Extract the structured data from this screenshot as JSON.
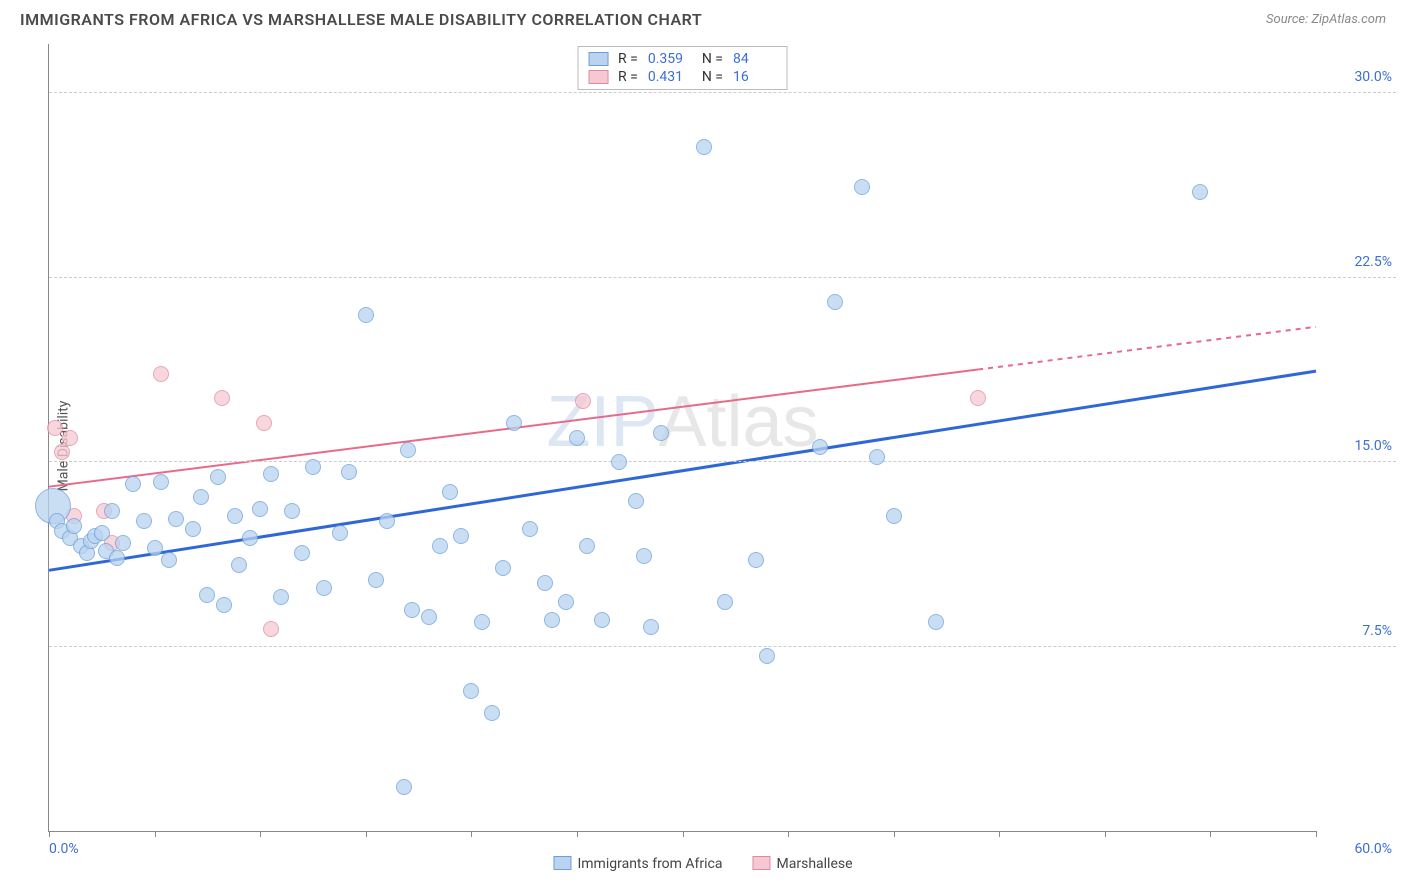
{
  "header": {
    "title": "IMMIGRANTS FROM AFRICA VS MARSHALLESE MALE DISABILITY CORRELATION CHART",
    "source_prefix": "Source: ",
    "source_name": "ZipAtlas.com"
  },
  "chart": {
    "type": "scatter",
    "ylabel": "Male Disability",
    "xlim": [
      0,
      60
    ],
    "ylim": [
      0,
      32
    ],
    "xtick_positions": [
      0,
      5,
      10,
      15,
      20,
      25,
      30,
      35,
      40,
      45,
      50,
      55,
      60
    ],
    "xtick_labels_shown": {
      "0": "0.0%",
      "60": "60.0%"
    },
    "ytick_grid": [
      7.5,
      15.0,
      22.5,
      30.0
    ],
    "ytick_labels": [
      "7.5%",
      "15.0%",
      "22.5%",
      "30.0%"
    ],
    "background_color": "#ffffff",
    "grid_color": "#cccccc",
    "axis_color": "#888888",
    "tick_label_color": "#3b6fd4",
    "marker_radius": 8,
    "marker_radius_big": 18,
    "series": {
      "africa": {
        "label": "Immigrants from Africa",
        "fill": "#b9d3f0",
        "stroke": "#6a9edb",
        "opacity": 0.75,
        "points": [
          [
            0.2,
            13.2,
            "big"
          ],
          [
            0.4,
            12.6
          ],
          [
            0.6,
            12.2
          ],
          [
            1.0,
            11.9
          ],
          [
            1.2,
            12.4
          ],
          [
            1.5,
            11.6
          ],
          [
            1.8,
            11.3
          ],
          [
            2.0,
            11.8
          ],
          [
            2.2,
            12.0
          ],
          [
            2.5,
            12.1
          ],
          [
            2.7,
            11.4
          ],
          [
            3.0,
            13.0
          ],
          [
            3.2,
            11.1
          ],
          [
            3.5,
            11.7
          ],
          [
            4.0,
            14.1
          ],
          [
            4.5,
            12.6
          ],
          [
            5.0,
            11.5
          ],
          [
            5.3,
            14.2
          ],
          [
            5.7,
            11.0
          ],
          [
            6.0,
            12.7
          ],
          [
            6.8,
            12.3
          ],
          [
            7.2,
            13.6
          ],
          [
            7.5,
            9.6
          ],
          [
            8.0,
            14.4
          ],
          [
            8.3,
            9.2
          ],
          [
            8.8,
            12.8
          ],
          [
            9.0,
            10.8
          ],
          [
            9.5,
            11.9
          ],
          [
            10.0,
            13.1
          ],
          [
            10.5,
            14.5
          ],
          [
            11.0,
            9.5
          ],
          [
            11.5,
            13.0
          ],
          [
            12.0,
            11.3
          ],
          [
            12.5,
            14.8
          ],
          [
            13.0,
            9.9
          ],
          [
            13.8,
            12.1
          ],
          [
            14.2,
            14.6
          ],
          [
            15.0,
            21.0
          ],
          [
            15.5,
            10.2
          ],
          [
            16.0,
            12.6
          ],
          [
            16.8,
            1.8
          ],
          [
            17.0,
            15.5
          ],
          [
            17.2,
            9.0
          ],
          [
            18.0,
            8.7
          ],
          [
            18.5,
            11.6
          ],
          [
            19.0,
            13.8
          ],
          [
            19.5,
            12.0
          ],
          [
            20.0,
            5.7
          ],
          [
            20.5,
            8.5
          ],
          [
            21.0,
            4.8
          ],
          [
            21.5,
            10.7
          ],
          [
            22.0,
            16.6
          ],
          [
            22.8,
            12.3
          ],
          [
            23.5,
            10.1
          ],
          [
            23.8,
            8.6
          ],
          [
            24.5,
            9.3
          ],
          [
            25.0,
            16.0
          ],
          [
            25.5,
            11.6
          ],
          [
            26.2,
            8.6
          ],
          [
            27.0,
            15.0
          ],
          [
            27.8,
            13.4
          ],
          [
            28.2,
            11.2
          ],
          [
            28.5,
            8.3
          ],
          [
            29.0,
            16.2
          ],
          [
            31.0,
            27.8
          ],
          [
            32.0,
            9.3
          ],
          [
            33.5,
            11.0
          ],
          [
            34.0,
            7.1
          ],
          [
            36.5,
            15.6
          ],
          [
            37.2,
            21.5
          ],
          [
            38.5,
            26.2
          ],
          [
            39.2,
            15.2
          ],
          [
            40.0,
            12.8
          ],
          [
            42.0,
            8.5
          ],
          [
            54.5,
            26.0
          ]
        ],
        "trend": {
          "y_at_x0": 10.6,
          "y_at_x60": 18.7,
          "color": "#2f68d6",
          "width": 3
        }
      },
      "marshallese": {
        "label": "Marshallese",
        "fill": "#f6c9d2",
        "stroke": "#e08aa0",
        "opacity": 0.75,
        "points": [
          [
            0.3,
            16.4
          ],
          [
            0.6,
            15.4
          ],
          [
            1.0,
            16.0
          ],
          [
            1.2,
            12.8
          ],
          [
            2.6,
            13.0
          ],
          [
            3.0,
            11.7
          ],
          [
            5.3,
            18.6
          ],
          [
            8.2,
            17.6
          ],
          [
            10.2,
            16.6
          ],
          [
            10.5,
            8.2
          ],
          [
            25.3,
            17.5
          ],
          [
            44.0,
            17.6
          ]
        ],
        "trend": {
          "y_at_x0": 14.0,
          "y_at_x60": 20.5,
          "solid_until_x": 44,
          "color": "#e86a8a",
          "width": 2
        }
      }
    },
    "legend_top": {
      "rows": [
        {
          "swatch_fill": "#b9d3f0",
          "swatch_stroke": "#6a9edb",
          "r_label": "R =",
          "r_val": "0.359",
          "n_label": "N =",
          "n_val": "84"
        },
        {
          "swatch_fill": "#f6c9d2",
          "swatch_stroke": "#e08aa0",
          "r_label": "R =",
          "r_val": "0.431",
          "n_label": "N =",
          "n_val": "16"
        }
      ]
    },
    "legend_bottom": [
      {
        "swatch_fill": "#b9d3f0",
        "swatch_stroke": "#6a9edb",
        "label": "Immigrants from Africa"
      },
      {
        "swatch_fill": "#f6c9d2",
        "swatch_stroke": "#e08aa0",
        "label": "Marshallese"
      }
    ],
    "watermark": {
      "part1": "ZIP",
      "part2": "Atlas"
    }
  }
}
